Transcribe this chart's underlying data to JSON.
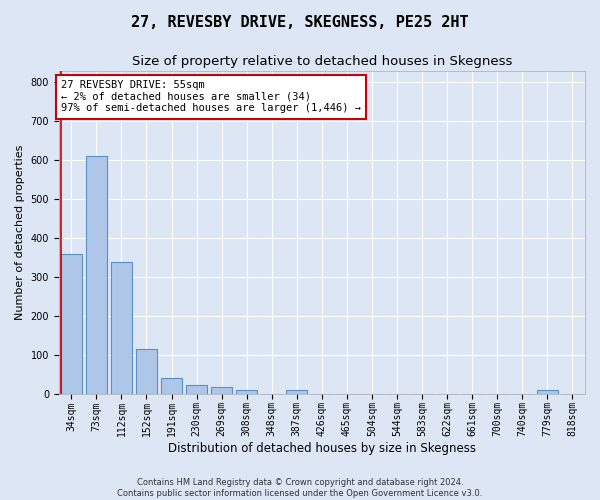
{
  "title": "27, REVESBY DRIVE, SKEGNESS, PE25 2HT",
  "subtitle": "Size of property relative to detached houses in Skegness",
  "xlabel": "Distribution of detached houses by size in Skegness",
  "ylabel": "Number of detached properties",
  "footer_line1": "Contains HM Land Registry data © Crown copyright and database right 2024.",
  "footer_line2": "Contains public sector information licensed under the Open Government Licence v3.0.",
  "bar_labels": [
    "34sqm",
    "73sqm",
    "112sqm",
    "152sqm",
    "191sqm",
    "230sqm",
    "269sqm",
    "308sqm",
    "348sqm",
    "387sqm",
    "426sqm",
    "465sqm",
    "504sqm",
    "544sqm",
    "583sqm",
    "622sqm",
    "661sqm",
    "700sqm",
    "740sqm",
    "779sqm",
    "818sqm"
  ],
  "bar_values": [
    358,
    611,
    338,
    114,
    40,
    22,
    16,
    10,
    0,
    8,
    0,
    0,
    0,
    0,
    0,
    0,
    0,
    0,
    0,
    8,
    0
  ],
  "bar_color": "#aec6e8",
  "bar_edge_color": "#5b8fc7",
  "bar_edge_width": 0.8,
  "vline_x": -0.43,
  "vline_color": "#cc0000",
  "annotation_text": "27 REVESBY DRIVE: 55sqm\n← 2% of detached houses are smaller (34)\n97% of semi-detached houses are larger (1,446) →",
  "annotation_box_color": "#ffffff",
  "annotation_box_edge_color": "#cc0000",
  "ylim": [
    0,
    830
  ],
  "yticks": [
    0,
    100,
    200,
    300,
    400,
    500,
    600,
    700,
    800
  ],
  "background_color": "#dce6f5",
  "plot_bg_color": "#dce6f5",
  "grid_color": "#ffffff",
  "title_fontsize": 11,
  "subtitle_fontsize": 9.5,
  "ylabel_fontsize": 8,
  "xlabel_fontsize": 8.5,
  "tick_fontsize": 7,
  "annotation_fontsize": 7.5,
  "footer_fontsize": 6
}
